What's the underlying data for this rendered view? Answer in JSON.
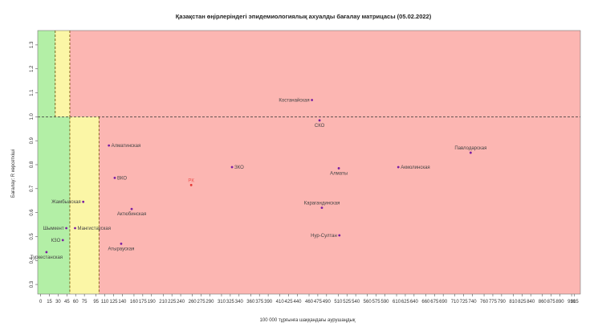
{
  "chart_data": {
    "type": "scatter",
    "title": "Қазақстан өңірлеріндегі эпидемиологиялық ахуалды бағалау матрицасы  (05.02.2022)",
    "xlabel": "100 000 тұрғынға шаққандағы аурушаңдық",
    "ylabel": "Бағалау: R көрсеткіші",
    "xlim": [
      -5,
      925
    ],
    "ylim": [
      0.26,
      1.36
    ],
    "x_ticks": [
      "0",
      "15",
      "30",
      "45",
      "60",
      "75",
      "95",
      "110",
      "125",
      "140",
      "160",
      "175",
      "190",
      "210",
      "225",
      "240",
      "260",
      "275",
      "290",
      "310",
      "325",
      "340",
      "360",
      "375",
      "390",
      "410",
      "425",
      "440",
      "460",
      "475",
      "490",
      "510",
      "525",
      "540",
      "560",
      "575",
      "590",
      "610",
      "625",
      "640",
      "660",
      "675",
      "690",
      "710",
      "725",
      "740",
      "760",
      "775",
      "790",
      "810",
      "825",
      "840",
      "860",
      "875",
      "890",
      "910",
      "915"
    ],
    "x_tick_values": [
      0,
      15,
      30,
      45,
      60,
      75,
      95,
      110,
      125,
      140,
      160,
      175,
      190,
      210,
      225,
      240,
      260,
      275,
      290,
      310,
      325,
      340,
      360,
      375,
      390,
      410,
      425,
      440,
      460,
      475,
      490,
      510,
      525,
      540,
      560,
      575,
      590,
      610,
      625,
      640,
      660,
      675,
      690,
      710,
      725,
      740,
      760,
      775,
      790,
      810,
      825,
      840,
      860,
      875,
      890,
      910,
      915
    ],
    "y_ticks": [
      "0.3",
      "0.4",
      "0.5",
      "0.6",
      "0.7",
      "0.8",
      "0.9",
      "1.0",
      "1.1",
      "1.2",
      "1.3"
    ],
    "y_tick_values": [
      0.3,
      0.4,
      0.5,
      0.6,
      0.7,
      0.8,
      0.9,
      1.0,
      1.1,
      1.2,
      1.3
    ],
    "threshold_r": 1.0,
    "zones": {
      "low_x": 50,
      "mid_x": 100,
      "upper_low_x": 25,
      "upper_mid_x": 50,
      "green": "#b3efa6",
      "yellow": "#fbf6a6",
      "red": "#fcb6b2"
    },
    "points": [
      {
        "label": "Костанайская",
        "x": 465,
        "y": 1.07,
        "label_pos": "left",
        "color": "#7b1fa2",
        "label_color": "#444444"
      },
      {
        "label": "СКО",
        "x": 478,
        "y": 0.985,
        "label_pos": "below",
        "color": "#7b1fa2",
        "label_color": "#444444"
      },
      {
        "label": "Павлодарская",
        "x": 737,
        "y": 0.85,
        "label_pos": "above",
        "color": "#7b1fa2",
        "label_color": "#444444"
      },
      {
        "label": "Алматинская",
        "x": 117,
        "y": 0.88,
        "label_pos": "right",
        "color": "#7b1fa2",
        "label_color": "#444444"
      },
      {
        "label": "ЗКО",
        "x": 328,
        "y": 0.79,
        "label_pos": "right",
        "color": "#7b1fa2",
        "label_color": "#444444"
      },
      {
        "label": "Алматы",
        "x": 511,
        "y": 0.785,
        "label_pos": "below",
        "color": "#7b1fa2",
        "label_color": "#444444"
      },
      {
        "label": "Акмолинская",
        "x": 613,
        "y": 0.79,
        "label_pos": "right",
        "color": "#7b1fa2",
        "label_color": "#444444"
      },
      {
        "label": "ВКО",
        "x": 127,
        "y": 0.745,
        "label_pos": "right",
        "color": "#7b1fa2",
        "label_color": "#444444"
      },
      {
        "label": "РК",
        "x": 258,
        "y": 0.715,
        "label_pos": "above",
        "color": "#e53935",
        "label_color": "#ef5350"
      },
      {
        "label": "Жамбылская",
        "x": 73,
        "y": 0.645,
        "label_pos": "left",
        "color": "#7b1fa2",
        "label_color": "#444444"
      },
      {
        "label": "Карагандинская",
        "x": 482,
        "y": 0.62,
        "label_pos": "above",
        "color": "#7b1fa2",
        "label_color": "#444444"
      },
      {
        "label": "Актюбинская",
        "x": 156,
        "y": 0.615,
        "label_pos": "below",
        "color": "#7b1fa2",
        "label_color": "#444444"
      },
      {
        "label": "Шымкент",
        "x": 44,
        "y": 0.535,
        "label_pos": "left",
        "color": "#7b1fa2",
        "label_color": "#444444"
      },
      {
        "label": "Мангистауская",
        "x": 59,
        "y": 0.535,
        "label_pos": "right",
        "color": "#7b1fa2",
        "label_color": "#444444"
      },
      {
        "label": "Нур-Султан",
        "x": 512,
        "y": 0.505,
        "label_pos": "left",
        "color": "#7b1fa2",
        "label_color": "#444444"
      },
      {
        "label": "КЗО",
        "x": 38,
        "y": 0.485,
        "label_pos": "left",
        "color": "#7b1fa2",
        "label_color": "#444444"
      },
      {
        "label": "Атырауская",
        "x": 138,
        "y": 0.47,
        "label_pos": "below",
        "color": "#7b1fa2",
        "label_color": "#444444"
      },
      {
        "label": "Туркестанская",
        "x": 10,
        "y": 0.435,
        "label_pos": "below",
        "color": "#7b1fa2",
        "label_color": "#444444"
      }
    ]
  }
}
